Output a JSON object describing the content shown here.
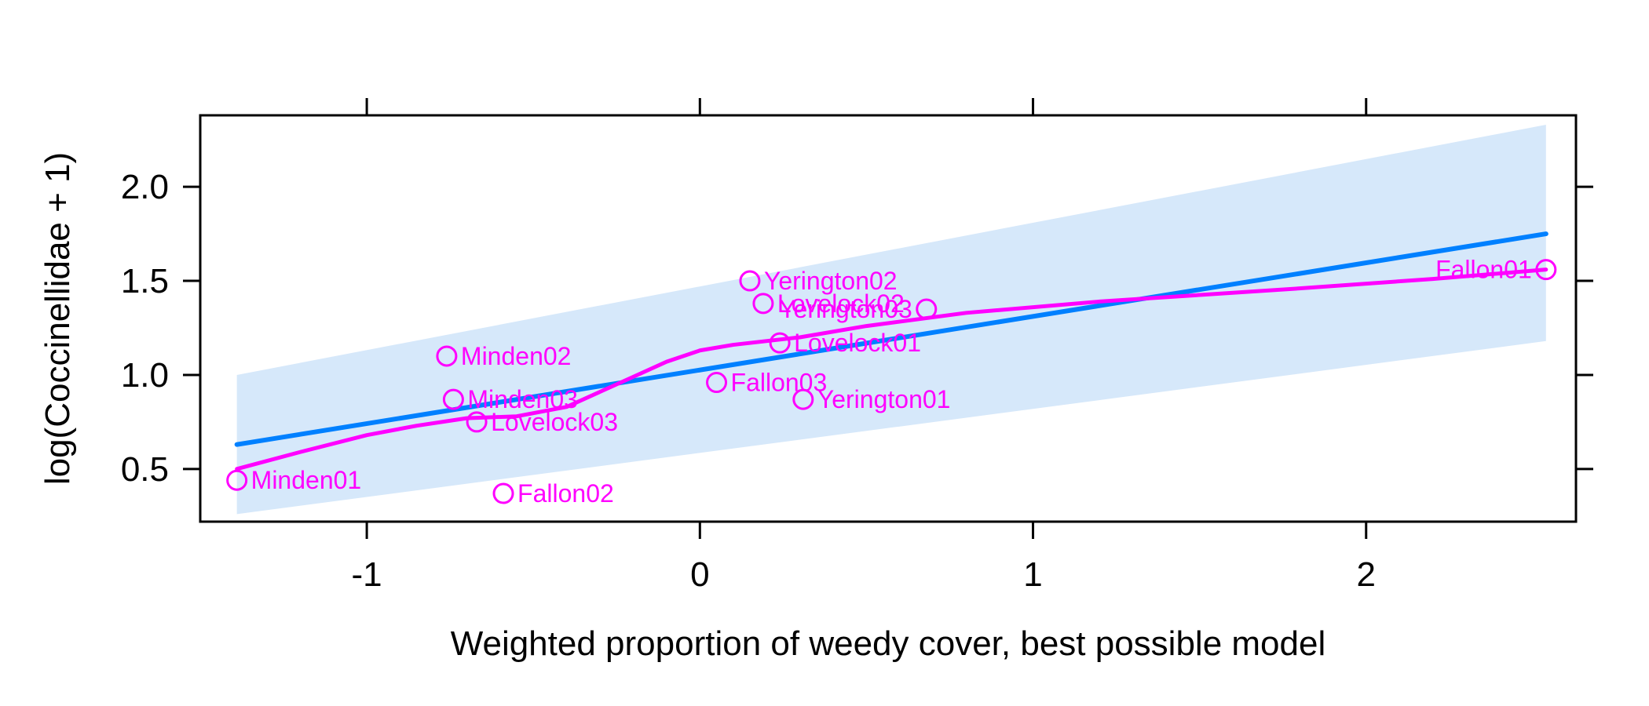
{
  "chart_data": {
    "type": "scatter",
    "title": "",
    "xlabel": "Weighted proportion of weedy cover, best possible model",
    "ylabel": "log(Coccinellidae + 1)",
    "xlim": [
      -1.5,
      2.63
    ],
    "ylim": [
      0.22,
      2.38
    ],
    "x_ticks": [
      -1,
      0,
      1,
      2
    ],
    "x_tick_labels": [
      "-1",
      "0",
      "1",
      "2"
    ],
    "y_ticks": [
      0.5,
      1.0,
      1.5,
      2.0
    ],
    "y_tick_labels": [
      "0.5",
      "1.0",
      "1.5",
      "2.0"
    ],
    "grid": false,
    "points": [
      {
        "label": "Minden01",
        "x": -1.39,
        "y": 0.44,
        "label_side": "right"
      },
      {
        "label": "Fallon02",
        "x": -0.59,
        "y": 0.37,
        "label_side": "right"
      },
      {
        "label": "Lovelock03",
        "x": -0.67,
        "y": 0.75,
        "label_side": "right"
      },
      {
        "label": "Minden03",
        "x": -0.74,
        "y": 0.87,
        "label_side": "right"
      },
      {
        "label": "Minden02",
        "x": -0.76,
        "y": 1.1,
        "label_side": "right"
      },
      {
        "label": "Fallon03",
        "x": 0.05,
        "y": 0.96,
        "label_side": "right"
      },
      {
        "label": "Yerington01",
        "x": 0.31,
        "y": 0.87,
        "label_side": "right"
      },
      {
        "label": "Lovelock01",
        "x": 0.24,
        "y": 1.17,
        "label_side": "right"
      },
      {
        "label": "Yerington03",
        "x": 0.68,
        "y": 1.35,
        "label_side": "left"
      },
      {
        "label": "Lovelock02",
        "x": 0.19,
        "y": 1.38,
        "label_side": "right"
      },
      {
        "label": "Yerington02",
        "x": 0.15,
        "y": 1.5,
        "label_side": "right"
      },
      {
        "label": "Fallon01",
        "x": 2.54,
        "y": 1.56,
        "label_side": "left"
      }
    ],
    "fit_line": {
      "x": [
        -1.39,
        2.54
      ],
      "y": [
        0.63,
        1.75
      ]
    },
    "confidence_band": {
      "x": [
        -1.39,
        2.54
      ],
      "lower": [
        0.26,
        1.18
      ],
      "upper": [
        1.0,
        2.33
      ]
    },
    "smooth_line": {
      "x": [
        -1.39,
        -1.2,
        -1.0,
        -0.85,
        -0.7,
        -0.55,
        -0.4,
        -0.3,
        -0.2,
        -0.1,
        0.0,
        0.1,
        0.3,
        0.5,
        0.8,
        1.2,
        1.8,
        2.2,
        2.54
      ],
      "y": [
        0.5,
        0.59,
        0.68,
        0.73,
        0.77,
        0.78,
        0.83,
        0.91,
        0.99,
        1.07,
        1.13,
        1.16,
        1.2,
        1.26,
        1.33,
        1.39,
        1.46,
        1.51,
        1.56
      ]
    },
    "colors": {
      "points": "#ff00ff",
      "smooth": "#ff00ff",
      "fit": "#0080ff",
      "band": "#d6e8fa"
    }
  }
}
